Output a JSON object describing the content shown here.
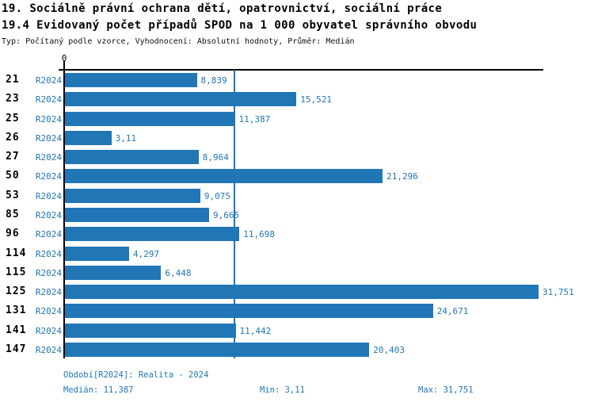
{
  "title_line1": "19. Sociálně právní ochrana dětí, opatrovnictví, sociální práce",
  "title_line2": "19.4 Evidovaný počet případů SPOD na 1 000 obyvatel správního obvodu",
  "subtitle": "Typ: Počítaný podle vzorce, Vyhodnocení: Absolutní hodnoty, Průměr: Medián",
  "axis": {
    "zero_label": "0"
  },
  "colors": {
    "bar": "#2176B5",
    "blue_text": "#2176B5",
    "median_line": "#2176B5",
    "axis": "#000000"
  },
  "chart_data": {
    "type": "bar",
    "orientation": "horizontal",
    "title": "19.4 Evidovaný počet případů SPOD na 1 000 obyvatel správního obvodu",
    "categories": [
      "21",
      "23",
      "25",
      "26",
      "27",
      "50",
      "53",
      "85",
      "96",
      "114",
      "115",
      "125",
      "131",
      "141",
      "147"
    ],
    "series_label": "R2024",
    "values": [
      8.839,
      15.521,
      11.387,
      3.11,
      8.964,
      21.296,
      9.075,
      9.665,
      11.698,
      4.297,
      6.448,
      31.751,
      24.671,
      11.442,
      20.403
    ],
    "value_labels": [
      "8,839",
      "15,521",
      "11,387",
      "3,11",
      "8,964",
      "21,296",
      "9,075",
      "9,665",
      "11,698",
      "4,297",
      "6,448",
      "31,751",
      "24,671",
      "11,442",
      "20,403"
    ],
    "xlim": [
      0,
      31.751
    ],
    "median": 11.387,
    "min": 3.11,
    "max": 31.751,
    "grid": false,
    "legend_position": "none"
  },
  "footer": {
    "period": "Období[R2024]: Realita - 2024",
    "median": "Medián: 11,387",
    "min": "Min: 3,11",
    "max": "Max: 31,751"
  }
}
